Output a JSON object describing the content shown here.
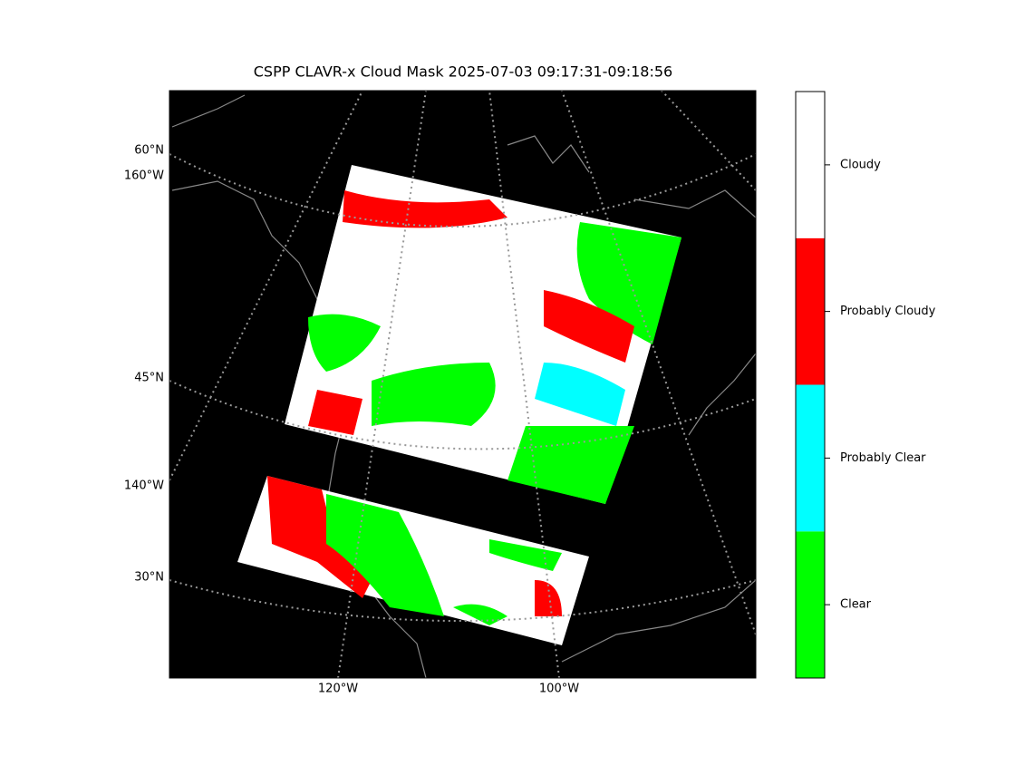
{
  "title": "CSPP CLAVR-x Cloud Mask 2025-07-03 09:17:31-09:18:56",
  "lat_labels": [
    "60°N",
    "45°N",
    "30°N"
  ],
  "lon_labels": [
    "160°W",
    "140°W",
    "120°W",
    "100°W"
  ],
  "colorbar": {
    "classes": [
      {
        "label": "Clear",
        "color": "#00ff00"
      },
      {
        "label": "Probably Clear",
        "color": "#00ffff"
      },
      {
        "label": "Probably Cloudy",
        "color": "#ff0000"
      },
      {
        "label": "Cloudy",
        "color": "#ffffff"
      }
    ]
  }
}
